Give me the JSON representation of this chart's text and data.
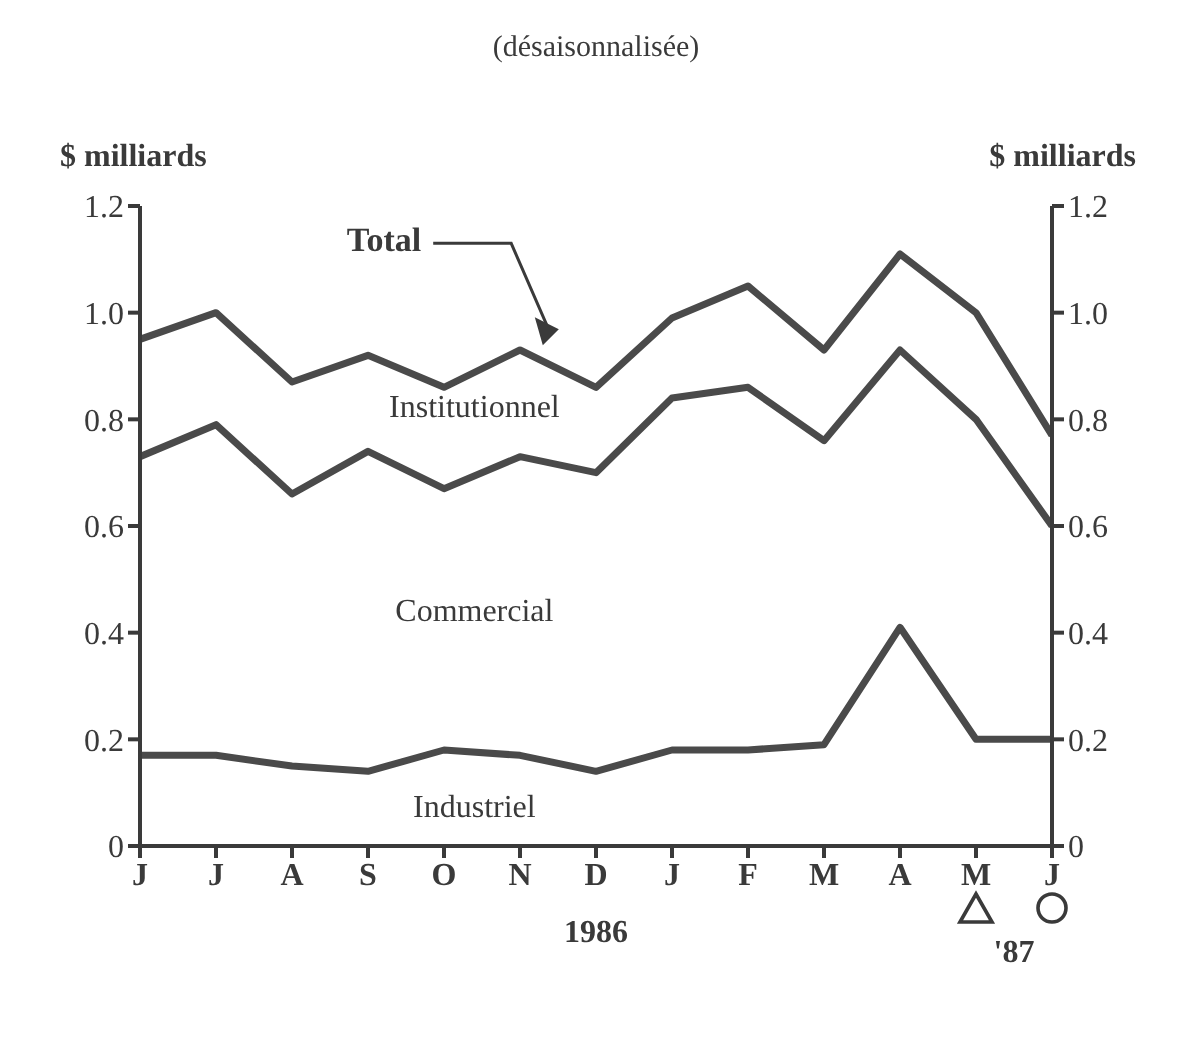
{
  "chart_data": {
    "type": "line",
    "subtitle": "(désaisonnalisée)",
    "ylabel": "$ milliards",
    "y2label": "$ milliards",
    "categories": [
      "J",
      "J",
      "A",
      "S",
      "O",
      "N",
      "D",
      "J",
      "F",
      "M",
      "A",
      "M",
      "J"
    ],
    "series": [
      {
        "color": "#4a4a4a",
        "values": [
          0.17,
          0.17,
          0.15,
          0.14,
          0.18,
          0.17,
          0.14,
          0.18,
          0.18,
          0.19,
          0.41,
          0.2,
          0.2
        ]
      },
      {
        "color": "#4a4a4a",
        "values": [
          0.73,
          0.79,
          0.66,
          0.74,
          0.67,
          0.73,
          0.7,
          0.84,
          0.86,
          0.76,
          0.93,
          0.8,
          0.6
        ]
      },
      {
        "name": "Total",
        "color": "#4a4a4a",
        "values": [
          0.95,
          1.0,
          0.87,
          0.92,
          0.86,
          0.93,
          0.86,
          0.99,
          1.05,
          0.93,
          1.11,
          1.0,
          0.77
        ]
      }
    ],
    "ylim": [
      0,
      1.2
    ],
    "yticks": [
      0,
      {
        "value": 0.2,
        "label": "0.2"
      },
      {
        "value": 0.4,
        "label": "0.4"
      },
      {
        "value": 0.6,
        "label": "0.6"
      },
      {
        "value": 0.8,
        "label": "0.8"
      },
      {
        "value": 1,
        "label": "1.0"
      },
      {
        "value": 1.2,
        "label": "1.2"
      }
    ],
    "y2lim": [
      0,
      1.2
    ],
    "y2ticks": [
      0,
      {
        "value": 0.2,
        "label": "0.2"
      },
      {
        "value": 0.4,
        "label": "0.4"
      },
      {
        "value": 0.6,
        "label": "0.6"
      },
      {
        "value": 0.8,
        "label": "0.8"
      },
      {
        "value": 1,
        "label": "1.0"
      },
      {
        "value": 1.2,
        "label": "1.2"
      }
    ],
    "annotations": [
      "Institutionnel",
      "Commercial",
      "Industriel",
      "1986",
      "'87"
    ],
    "marker": "none"
  }
}
